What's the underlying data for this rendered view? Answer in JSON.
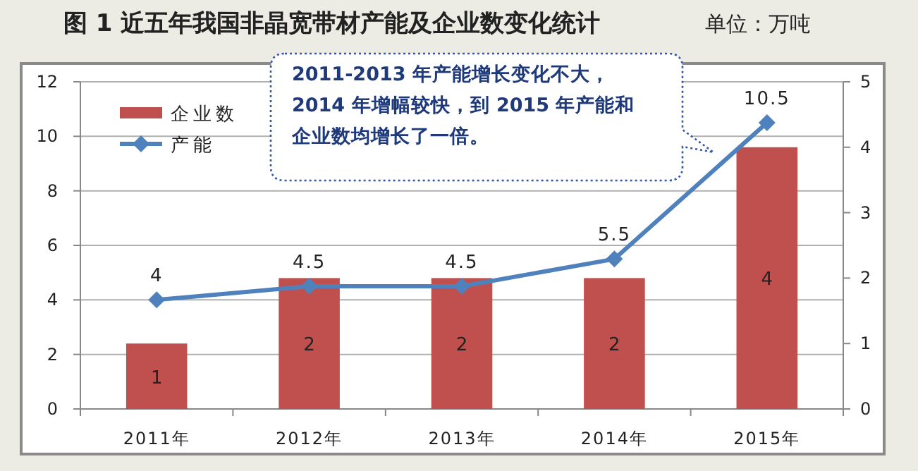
{
  "chart_data": {
    "type": "bar",
    "title": "图 1 近五年我国非晶宽带材产能及企业数变化统计",
    "categories": [
      "2011年",
      "2012年",
      "2013年",
      "2014年",
      "2015年"
    ],
    "series": [
      {
        "name": "企业数",
        "axis": "y2",
        "color": "#c0504d",
        "values": [
          1,
          2,
          2,
          2,
          4
        ]
      },
      {
        "name": "产能",
        "type": "line",
        "color": "#4f81bd",
        "values": [
          4,
          4.5,
          4.5,
          5.5,
          10.5
        ]
      }
    ],
    "ylim": [
      0,
      12
    ],
    "yticks": [
      0,
      2,
      4,
      6,
      8,
      10,
      12
    ],
    "y2lim": [
      0,
      5
    ],
    "y2ticks": [
      0,
      1,
      2,
      3,
      4,
      5
    ],
    "grid": "y",
    "legend": "top left",
    "data_labels": true,
    "marker": "diamond",
    "line_style": "solid",
    "annotations": [
      "单位：万吨",
      "2011-2013 年产能增长变化不大，2014 年增幅较快，到 2015 年产能和企业数均增长了一倍。"
    ]
  }
}
